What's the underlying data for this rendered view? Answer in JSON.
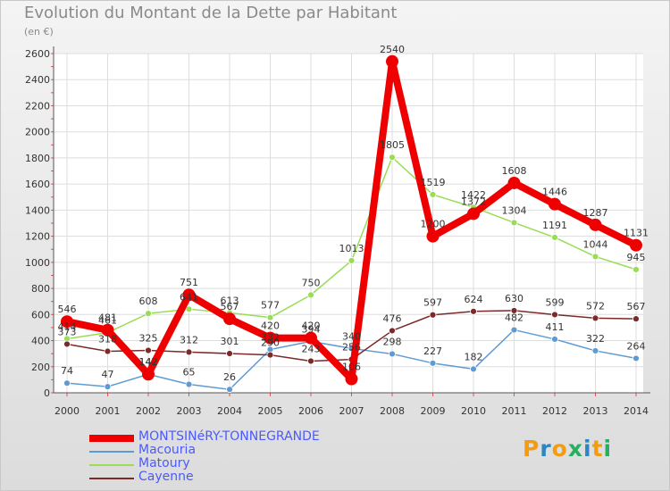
{
  "header": {
    "title": "Evolution du Montant de la Dette par Habitant",
    "unit": "(en €)"
  },
  "brand": {
    "logo_text": "Proxiti"
  },
  "chart_data": {
    "type": "line",
    "title": "Evolution du Montant de la Dette par Habitant",
    "ylabel": "(en €)",
    "xlabel": "",
    "ylim": [
      0,
      2600
    ],
    "yticks": [
      0,
      200,
      400,
      600,
      800,
      1000,
      1200,
      1400,
      1600,
      1800,
      2000,
      2200,
      2400,
      2600
    ],
    "x": [
      "2000",
      "2001",
      "2002",
      "2003",
      "2004",
      "2005",
      "2006",
      "2007",
      "2008",
      "2009",
      "2010",
      "2011",
      "2012",
      "2013",
      "2014"
    ],
    "series": [
      {
        "name": "MONTSINéRY-TONNEGRANDE",
        "color": "#ee0000",
        "values": [
          546,
          481,
          142,
          751,
          567,
          420,
          420,
          106,
          2540,
          1200,
          1372,
          1608,
          1446,
          1287,
          1131
        ]
      },
      {
        "name": "Macouria",
        "color": "#5e9bd3",
        "values": [
          74,
          47,
          142,
          65,
          26,
          332,
          394,
          340,
          298,
          227,
          182,
          482,
          411,
          322,
          264
        ]
      },
      {
        "name": "Matoury",
        "color": "#99dd55",
        "values": [
          414,
          461,
          608,
          641,
          613,
          577,
          750,
          1013,
          1805,
          1519,
          1422,
          1304,
          1191,
          1044,
          945
        ]
      },
      {
        "name": "Cayenne",
        "color": "#7b2a2a",
        "values": [
          373,
          318,
          325,
          312,
          301,
          290,
          243,
          256,
          476,
          597,
          624,
          630,
          599,
          572,
          567
        ]
      }
    ],
    "data_labels": [
      {
        "series": "MONTSINéRY-TONNEGRANDE",
        "labels": [
          "546",
          "481",
          "142",
          "751",
          "567",
          "420",
          "420",
          "106",
          "2540",
          "1200",
          "1372",
          "1608",
          "1446",
          "1287",
          "1131"
        ]
      },
      {
        "series": "Macouria",
        "labels": [
          "74",
          "47",
          "142",
          "65",
          "26",
          "332",
          "394",
          "340",
          "298",
          "227",
          "182",
          "482",
          "411",
          "322",
          "264"
        ]
      },
      {
        "series": "Matoury",
        "labels": [
          "414",
          "461",
          "608",
          "641",
          "613",
          "577",
          "750",
          "1013",
          "1805",
          "1519",
          "1422",
          "1304",
          "1191",
          "1044",
          "945"
        ]
      },
      {
        "series": "Cayenne",
        "labels": [
          "373",
          "318",
          "325",
          "312",
          "301",
          "290",
          "243",
          "256",
          "476",
          "597",
          "624",
          "630",
          "599",
          "572",
          "567"
        ]
      }
    ],
    "grid": true,
    "legend_position": "bottom-left"
  }
}
